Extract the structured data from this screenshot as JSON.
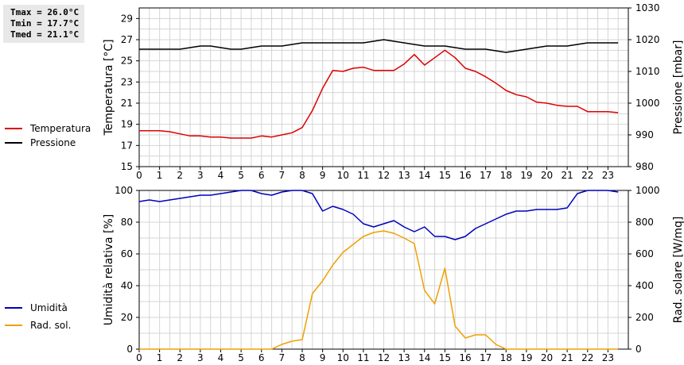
{
  "stats": {
    "tmax": "Tmax = 26.0°C",
    "tmin": "Tmin = 17.7°C",
    "tmed": "Tmed = 21.1°C"
  },
  "legend_top": [
    {
      "label": "Temperatura",
      "color": "#dd0000"
    },
    {
      "label": "Pressione",
      "color": "#000000"
    }
  ],
  "legend_bottom": [
    {
      "label": "Umidità",
      "color": "#0000bb"
    },
    {
      "label": "Rad. sol.",
      "color": "#f0a000"
    }
  ],
  "chart_data": [
    {
      "type": "line",
      "xlabel": "",
      "xlim": [
        0,
        24
      ],
      "xticks": [
        0,
        1,
        2,
        3,
        4,
        5,
        6,
        7,
        8,
        9,
        10,
        11,
        12,
        13,
        14,
        15,
        16,
        17,
        18,
        19,
        20,
        21,
        22,
        23
      ],
      "ylabel": "Temperatura [°C]",
      "ylim": [
        15,
        30
      ],
      "yticks": [
        15,
        17,
        19,
        21,
        23,
        25,
        27,
        29
      ],
      "y2label": "Pressione [mbar]",
      "y2lim": [
        980,
        1030
      ],
      "y2ticks": [
        980,
        990,
        1000,
        1010,
        1020,
        1030
      ],
      "grid": true,
      "series": [
        {
          "name": "Temperatura",
          "axis": "left",
          "color": "#dd0000",
          "x": [
            0,
            1,
            1.5,
            2,
            2.5,
            3,
            3.5,
            4,
            4.5,
            5,
            5.5,
            6,
            6.5,
            7,
            7.5,
            8,
            8.5,
            9,
            9.5,
            10,
            10.5,
            11,
            11.5,
            12,
            12.5,
            13,
            13.5,
            14,
            14.5,
            15,
            15.5,
            16,
            16.5,
            17,
            17.5,
            18,
            18.5,
            19,
            19.5,
            20,
            20.5,
            21,
            21.5,
            22,
            22.5,
            23,
            23.5
          ],
          "values": [
            18.4,
            18.4,
            18.3,
            18.1,
            17.9,
            17.9,
            17.8,
            17.8,
            17.7,
            17.7,
            17.7,
            17.9,
            17.8,
            18.0,
            18.2,
            18.7,
            20.3,
            22.4,
            24.1,
            24.0,
            24.3,
            24.4,
            24.1,
            24.1,
            24.1,
            24.7,
            25.6,
            24.6,
            25.3,
            26.0,
            25.3,
            24.3,
            24.0,
            23.5,
            22.9,
            22.2,
            21.8,
            21.6,
            21.1,
            21.0,
            20.8,
            20.7,
            20.7,
            20.2,
            20.2,
            20.2,
            20.1
          ]
        },
        {
          "name": "Pressione",
          "axis": "right",
          "color": "#000000",
          "x": [
            0,
            1,
            2,
            2.5,
            3,
            3.5,
            4,
            4.5,
            5,
            5.5,
            6,
            6.5,
            7,
            7.5,
            8,
            9,
            10,
            11,
            11.5,
            12,
            12.5,
            13,
            13.5,
            14,
            14.5,
            15,
            15.5,
            16,
            16.5,
            17,
            17.5,
            18,
            18.5,
            19,
            19.5,
            20,
            20.5,
            21,
            21.5,
            22,
            22.5,
            23,
            23.5
          ],
          "values": [
            1017,
            1017,
            1017,
            1017.5,
            1018,
            1018,
            1017.5,
            1017,
            1017,
            1017.5,
            1018,
            1018,
            1018,
            1018.5,
            1019,
            1019,
            1019,
            1019,
            1019.5,
            1020,
            1019.5,
            1019,
            1018.5,
            1018,
            1018,
            1018,
            1017.5,
            1017,
            1017,
            1017,
            1016.5,
            1016,
            1016.5,
            1017,
            1017.5,
            1018,
            1018,
            1018,
            1018.5,
            1019,
            1019,
            1019,
            1019
          ]
        }
      ]
    },
    {
      "type": "line",
      "xlabel": "",
      "xlim": [
        0,
        24
      ],
      "xticks": [
        0,
        1,
        2,
        3,
        4,
        5,
        6,
        7,
        8,
        9,
        10,
        11,
        12,
        13,
        14,
        15,
        16,
        17,
        18,
        19,
        20,
        21,
        22,
        23
      ],
      "ylabel": "Umidità relativa [%]",
      "ylim": [
        0,
        100
      ],
      "yticks": [
        0,
        20,
        40,
        60,
        80,
        100
      ],
      "y2label": "Rad. solare [W/mq]",
      "y2lim": [
        0,
        1000
      ],
      "y2ticks": [
        0,
        200,
        400,
        600,
        800,
        1000
      ],
      "grid": true,
      "series": [
        {
          "name": "Umidità",
          "axis": "left",
          "color": "#0000bb",
          "x": [
            0,
            0.5,
            1,
            1.5,
            2,
            2.5,
            3,
            3.5,
            4,
            4.5,
            5,
            5.5,
            6,
            6.5,
            7,
            7.5,
            8,
            8.5,
            9,
            9.5,
            10,
            10.5,
            11,
            11.5,
            12,
            12.5,
            13,
            13.5,
            14,
            14.5,
            15,
            15.5,
            16,
            16.5,
            17,
            17.5,
            18,
            18.5,
            19,
            19.5,
            20,
            20.5,
            21,
            21.5,
            22,
            22.5,
            23,
            23.5
          ],
          "values": [
            93,
            94,
            93,
            94,
            95,
            96,
            97,
            97,
            98,
            99,
            100,
            100,
            98,
            97,
            99,
            100,
            100,
            98,
            87,
            90,
            88,
            85,
            79,
            77,
            79,
            81,
            77,
            74,
            77,
            71,
            71,
            69,
            71,
            76,
            79,
            82,
            85,
            87,
            87,
            88,
            88,
            88,
            89,
            98,
            100,
            100,
            100,
            99
          ]
        },
        {
          "name": "Rad. sol.",
          "axis": "right",
          "color": "#f0a000",
          "x": [
            0,
            1,
            2,
            3,
            4,
            5,
            6,
            6.5,
            7,
            7.5,
            8,
            8.5,
            9,
            9.5,
            10,
            10.5,
            11,
            11.5,
            12,
            12.5,
            13,
            13.5,
            14,
            14.5,
            15,
            15.5,
            16,
            16.5,
            17,
            17.5,
            18,
            19,
            20,
            21,
            22,
            23,
            23.5
          ],
          "values": [
            0,
            0,
            0,
            0,
            0,
            0,
            0,
            0,
            30,
            50,
            60,
            350,
            430,
            530,
            610,
            660,
            710,
            735,
            745,
            730,
            700,
            665,
            370,
            285,
            510,
            145,
            70,
            90,
            90,
            30,
            0,
            0,
            0,
            0,
            0,
            0,
            0
          ]
        }
      ]
    }
  ]
}
